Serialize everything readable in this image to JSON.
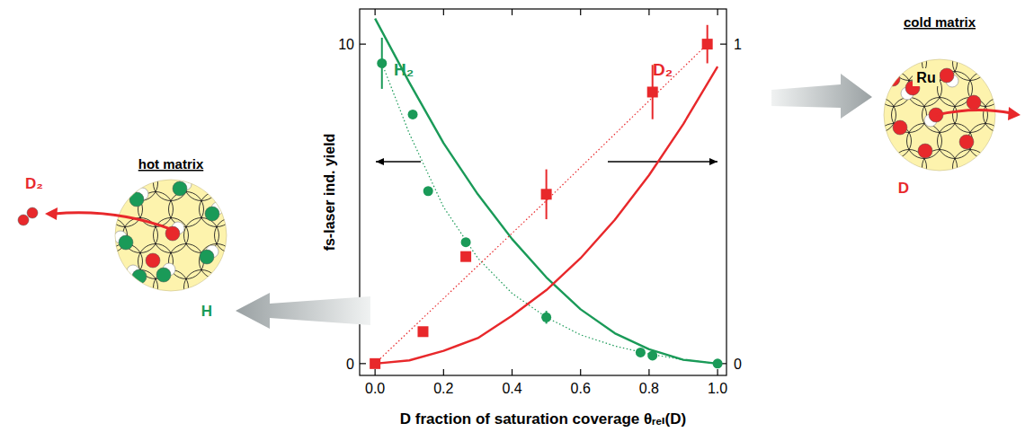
{
  "chart_data": {
    "type": "scatter",
    "xlabel": "D fraction of saturation coverage θᵣₑₗ(D)",
    "ylabel": "fs-laser ind. yield",
    "xlim": [
      -0.045,
      1.026
    ],
    "ylim": [
      -0.37,
      11.1
    ],
    "y2lim": [
      -0.037,
      1.11
    ],
    "xticks": [
      {
        "value": 0,
        "label": "0.0"
      },
      {
        "value": 0.2,
        "label": "0.2"
      },
      {
        "value": 0.4,
        "label": "0.4"
      },
      {
        "value": 0.6,
        "label": "0.6"
      },
      {
        "value": 0.8,
        "label": "0.8"
      },
      {
        "value": 1,
        "label": "1.0"
      }
    ],
    "yticks": [
      0,
      10
    ],
    "y2ticks": [
      0,
      1
    ],
    "grid": false,
    "series": [
      {
        "name": "H₂",
        "type": "scatter",
        "marker": "circle",
        "color": "#1a9a58",
        "x": [
          0.02,
          0.11,
          0.155,
          0.265,
          0.5,
          0.775,
          0.81,
          1.0
        ],
        "values": [
          9.4,
          7.8,
          5.4,
          3.8,
          1.45,
          0.35,
          0.25,
          0.0
        ],
        "errors": [
          0.8,
          null,
          null,
          null,
          0.2,
          null,
          null,
          null
        ]
      },
      {
        "name": "D₂",
        "type": "scatter",
        "marker": "square",
        "color": "#e8282b",
        "axis": "y2",
        "x": [
          0.0,
          0.14,
          0.265,
          0.5,
          0.81,
          0.97
        ],
        "values": [
          0.0,
          0.1,
          0.335,
          0.53,
          0.85,
          1.0
        ],
        "errors": [
          null,
          null,
          null,
          0.078,
          0.085,
          0.06
        ]
      },
      {
        "type": "line",
        "line_style": "solid",
        "color": "#1a9a58",
        "x": [
          0,
          0.1,
          0.2,
          0.3,
          0.4,
          0.5,
          0.6,
          0.7,
          0.8,
          0.9,
          1.0
        ],
        "values": [
          10.8,
          8.8,
          6.9,
          5.3,
          3.9,
          2.7,
          1.7,
          0.95,
          0.45,
          0.12,
          0
        ]
      },
      {
        "type": "line",
        "line_style": "dotted",
        "color": "#1a9a58",
        "x": [
          0.02,
          0.1,
          0.2,
          0.3,
          0.4,
          0.5,
          0.6,
          0.7,
          0.8,
          0.9,
          1.0
        ],
        "values": [
          9.4,
          7.2,
          4.9,
          3.3,
          2.2,
          1.45,
          0.9,
          0.55,
          0.3,
          0.12,
          0
        ]
      },
      {
        "type": "line",
        "line_style": "solid",
        "color": "#e8282b",
        "axis": "y2",
        "x": [
          0,
          0.1,
          0.2,
          0.3,
          0.4,
          0.5,
          0.6,
          0.7,
          0.8,
          0.9,
          1.0
        ],
        "values": [
          0,
          0.01,
          0.04,
          0.08,
          0.15,
          0.23,
          0.33,
          0.45,
          0.59,
          0.75,
          0.93
        ]
      },
      {
        "type": "line",
        "line_style": "dotted",
        "color": "#e8282b",
        "axis": "y2",
        "x": [
          0,
          0.5,
          0.97
        ],
        "values": [
          0,
          0.51,
          1.0
        ]
      }
    ]
  },
  "diagrams": {
    "hot": {
      "title": "hot matrix",
      "labels": [
        "D₂",
        "H"
      ]
    },
    "cold": {
      "title": "cold matrix",
      "labels": [
        "Ru",
        "D"
      ]
    }
  }
}
